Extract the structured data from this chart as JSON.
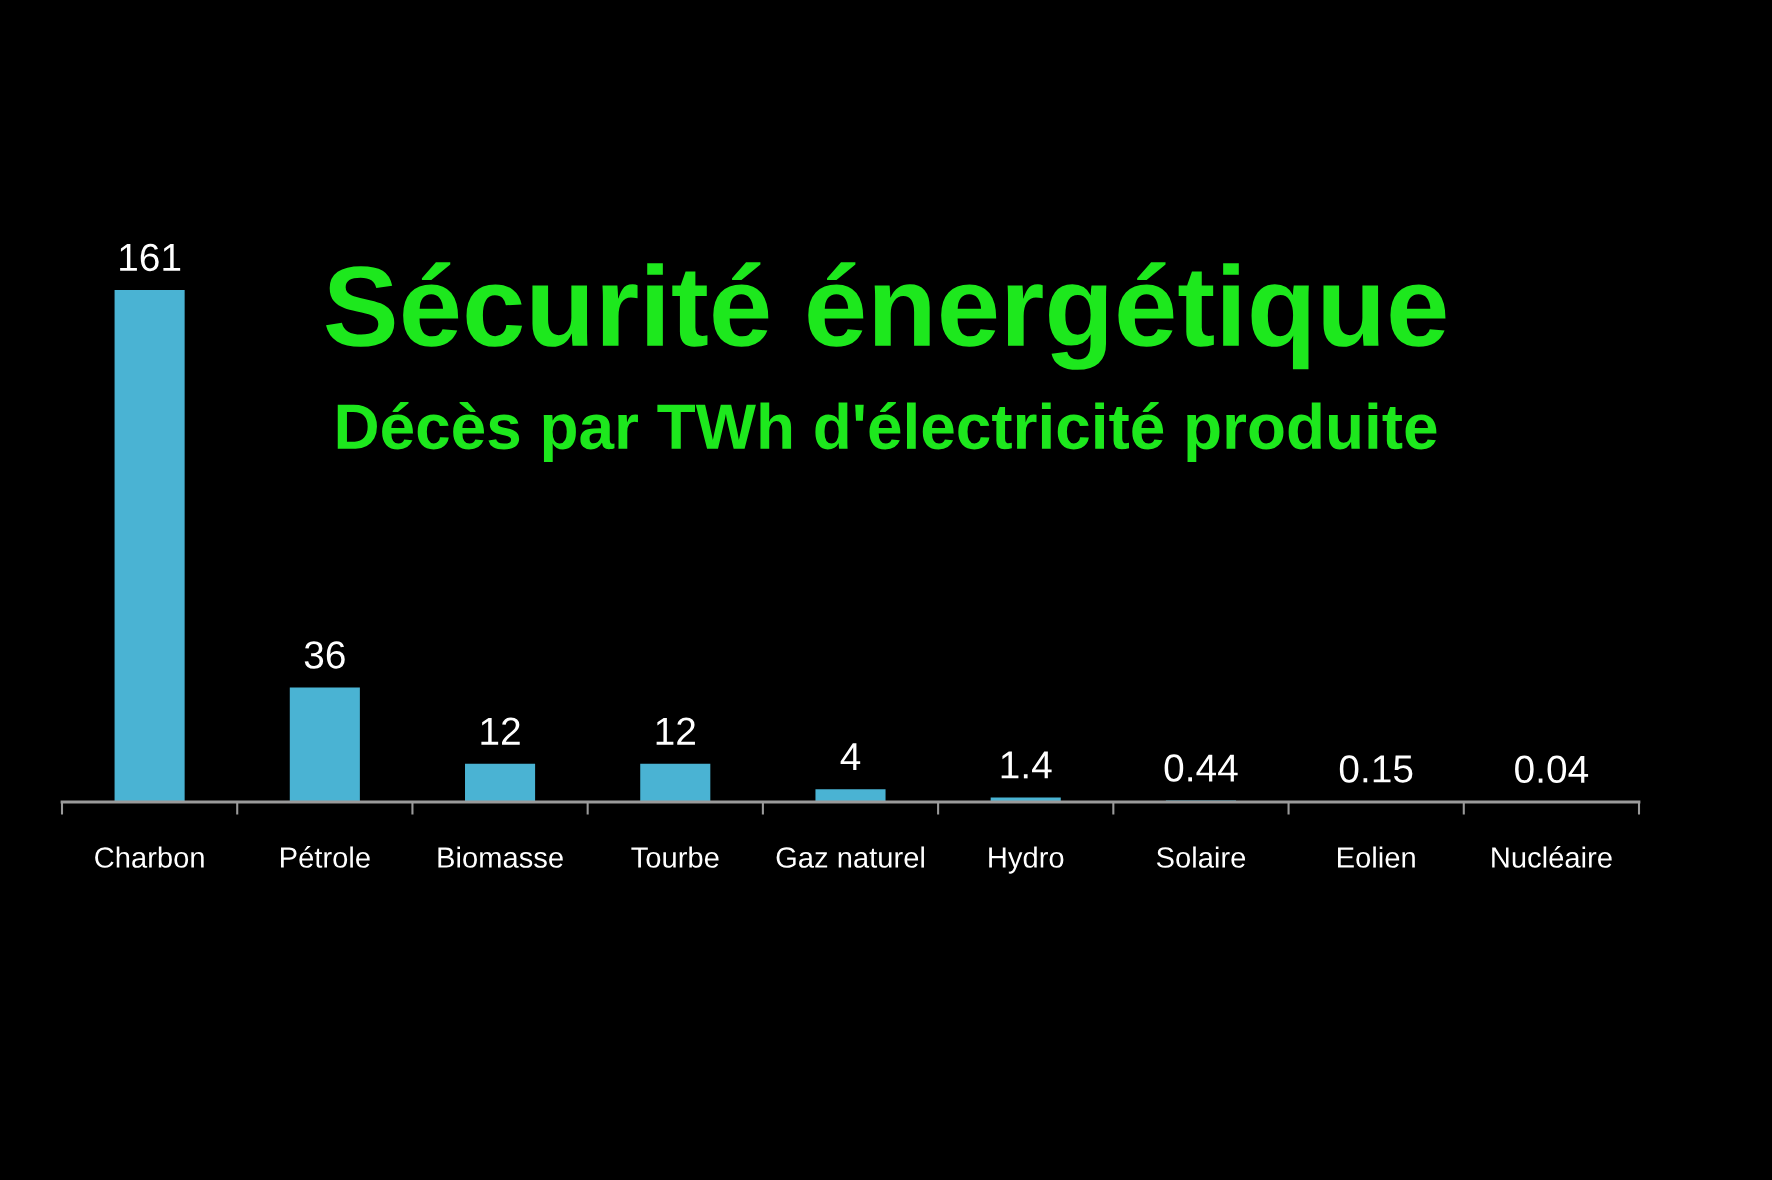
{
  "chart_data": {
    "type": "bar",
    "title": "Sécurité énergétique",
    "subtitle": "Décès par TWh d'électricité produite",
    "categories": [
      "Charbon",
      "Pétrole",
      "Biomasse",
      "Tourbe",
      "Gaz naturel",
      "Hydro",
      "Solaire",
      "Eolien",
      "Nucléaire"
    ],
    "values": [
      161,
      36,
      12,
      12,
      4,
      1.4,
      0.44,
      0.15,
      0.04
    ],
    "color": "#4ab3d3",
    "data_labels": true
  }
}
